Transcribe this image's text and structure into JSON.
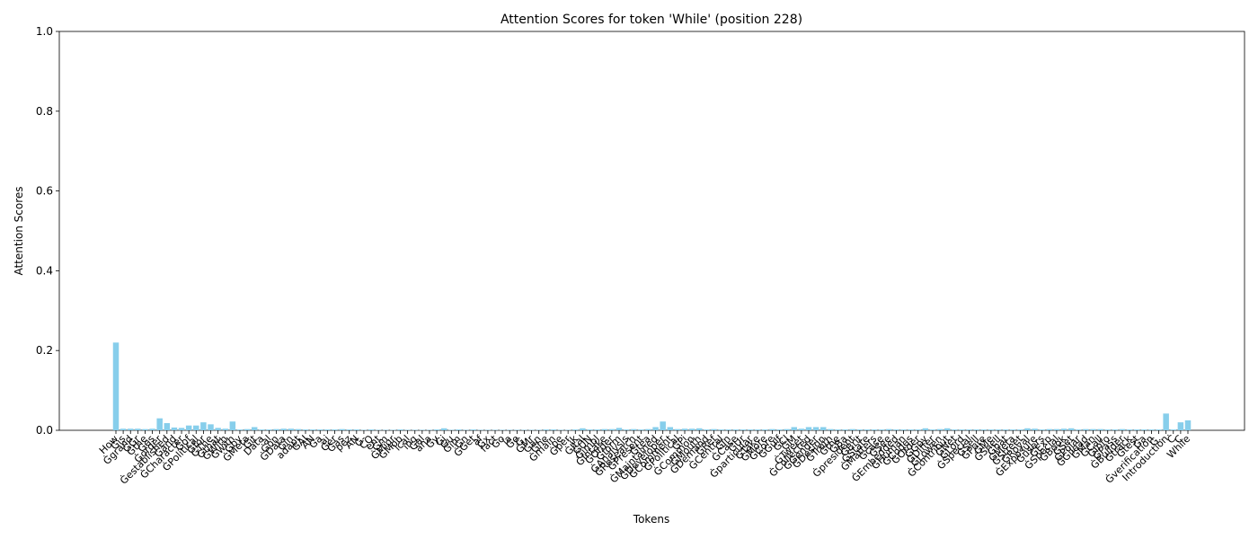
{
  "chart_data": {
    "type": "bar",
    "title": "Attention Scores for token 'While' (position 228)",
    "x_label": "Tokens",
    "y_label": "Attention Scores",
    "color": "#87ceeb",
    "ylim": [
      0,
      1
    ],
    "yticks": [
      {
        "value": 0,
        "label": "0.0"
      },
      0.2,
      0.4,
      0.6,
      0.8,
      {
        "value": 1,
        "label": "1.0"
      }
    ],
    "grid": false,
    "categories": [
      "How",
      "Ġis",
      "Ġgrand",
      "ĠGr",
      "Ġthe",
      "Ġes",
      "Ġorder",
      "Ġestablished",
      "Ġand",
      "ĠCharacter",
      "Ġof",
      "ĠPolitical",
      "Ġfor",
      "ĠThe",
      "Ġthat",
      "ĠWith",
      "Ġwith",
      "Ġby",
      "ĠMeta",
      "Ġit",
      "Data",
      "al",
      "Ġon",
      "ĠData",
      "Ġin",
      "adapt",
      "ĠAI",
      "AN",
      "Ġa",
      "ai",
      "Ġer",
      "Ġas",
      "pez",
      "AN",
      "Ġ-",
      "CO",
      "ent",
      "Ġm",
      "ĠMigr",
      "ĠMob",
      "ical",
      "ing",
      "Ġal",
      "ana",
      "Ġy",
      "Ġj",
      "Ġu",
      "Ġim",
      "Ġn",
      "ĠGet",
      "af",
      "Ġx",
      "fact",
      "Ġo",
      "ia",
      "Ġe",
      "Ġ,",
      "ĠMr",
      "Ġan",
      "Ġhe",
      "Ġmain",
      "pe",
      "Ġper",
      "ik",
      "ĠItal",
      "ĠUN",
      "Ġimpl",
      "ĠIntake",
      "ĠOrder",
      "Ġform",
      "ĠAnalysis",
      "ĠResearch",
      "ĠPresent",
      "Ġtea",
      "ĠMaintained",
      "ĠDeveloper",
      "ĠComment",
      "ĠPolitical",
      "ĠPi",
      "ĠCommon",
      "ĠMouth",
      "ĠDemand",
      "ĠRef",
      "ĠCentral",
      "ĠIn",
      "ĠCase",
      "ĠUr",
      "Ġparticular",
      "ĠTake",
      "ĠMore",
      "ĠCore",
      "ĠGulf",
      "ĠCl",
      "ĠM",
      "ĠTweet",
      "ĠCollected",
      "ĠGender",
      "ĠDesign",
      "ĠTruth",
      "Ġthe",
      "ĠBa",
      "Ġpresident",
      "ĠBrit",
      "ĠState",
      "ĠMatters",
      "Ġcase",
      "ĠSee",
      "ĠEmbedded",
      "ĠHuman",
      "ĠCodes",
      "ĠOrder",
      "ĠGoy",
      "ĠDiffer",
      "ĠLowen",
      "ĠContribut",
      "ĠNet",
      "ĠLord",
      "ĠSpecial",
      "ĠSell",
      "ĠPure",
      "ĠMe",
      "ĠShell",
      "Ġhat",
      "ĠMeta",
      "ĠStreet",
      "ĠRoyal",
      "ĠExposure",
      "Ġusers",
      "ĠExp",
      "ĠSpecial",
      "ĠBook",
      "ĠSet",
      "ĠPolar",
      "ĠGilead",
      "ĠMan",
      "ĠCall",
      "ĠInfo",
      "ĠPass",
      "ĠBuilder",
      "Ġtrack",
      "Ġtest",
      "Ġa",
      "Ġverification",
      "Ġ.",
      "Introduction",
      "Ċ",
      "C",
      "While"
    ],
    "values": [
      0.22,
      0.004,
      0.004,
      0.004,
      0.003,
      0.004,
      0.03,
      0.018,
      0.007,
      0.006,
      0.012,
      0.012,
      0.02,
      0.015,
      0.006,
      0.004,
      0.022,
      0.002,
      0.003,
      0.008,
      0.002,
      0.002,
      0.003,
      0.004,
      0.004,
      0.003,
      0.002,
      0.002,
      0.002,
      0.002,
      0.002,
      0.003,
      0.002,
      0.002,
      0.001,
      0.002,
      0.001,
      0.001,
      0.001,
      0.002,
      0.001,
      0.001,
      0.001,
      0.001,
      0.002,
      0.005,
      0.001,
      0.002,
      0.001,
      0.002,
      0.001,
      0.001,
      0.001,
      0.001,
      0.001,
      0.001,
      0.001,
      0.001,
      0.001,
      0.002,
      0.002,
      0.001,
      0.001,
      0.002,
      0.005,
      0.002,
      0.002,
      0.003,
      0.003,
      0.006,
      0.002,
      0.003,
      0.002,
      0.003,
      0.008,
      0.022,
      0.008,
      0.003,
      0.004,
      0.004,
      0.005,
      0.002,
      0.003,
      0.002,
      0.002,
      0.002,
      0.002,
      0.002,
      0.002,
      0.002,
      0.003,
      0.002,
      0.003,
      0.008,
      0.004,
      0.008,
      0.008,
      0.008,
      0.003,
      0.002,
      0.002,
      0.003,
      0.002,
      0.002,
      0.002,
      0.002,
      0.003,
      0.002,
      0.002,
      0.002,
      0.002,
      0.005,
      0.002,
      0.003,
      0.005,
      0.002,
      0.002,
      0.002,
      0.002,
      0.002,
      0.002,
      0.002,
      0.002,
      0.002,
      0.002,
      0.005,
      0.004,
      0.002,
      0.003,
      0.003,
      0.004,
      0.005,
      0.002,
      0.003,
      0.003,
      0.003,
      0.002,
      0.002,
      0.003,
      0.002,
      0.002,
      0.002,
      0.002,
      0.002,
      0.042,
      0.002,
      0.02,
      0.025
    ]
  }
}
